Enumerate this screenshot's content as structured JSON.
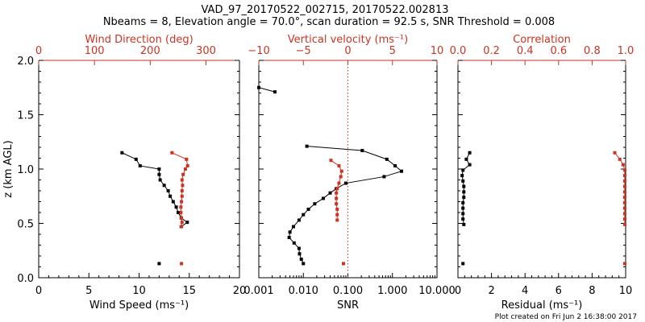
{
  "title_line1": "VAD_97_20170522_002715, 20170522.002813",
  "title_line2": "Nbeams = 8, Elevation angle = 70.0°, scan duration = 92.5 s, SNR Threshold = 0.008",
  "footer": "Plot created on Fri Jun  2 16:38:00 2017",
  "colors": {
    "black": "#000000",
    "red": "#cc3322"
  },
  "chart_data": [
    {
      "type": "scatter",
      "xlabel_bottom": "Wind Speed (ms⁻¹)",
      "xlabel_top": "Wind Direction (deg)",
      "ylabel": "z (km AGL)",
      "xlim_bottom": [
        0,
        20
      ],
      "xticks_bottom": [
        "0",
        "5",
        "10",
        "15",
        "20"
      ],
      "xlim_top": [
        0,
        360
      ],
      "xticks_top": [
        "0",
        "100",
        "200",
        "300"
      ],
      "ylim": [
        0,
        2
      ],
      "yticks": [
        "0.0",
        "0.5",
        "1.0",
        "1.5",
        "2.0"
      ],
      "series": [
        {
          "color": "#000000",
          "axis": "bottom",
          "line": true,
          "points": [
            [
              8.3,
              1.15
            ],
            [
              9.7,
              1.09
            ],
            [
              10.1,
              1.03
            ],
            [
              12.0,
              1.0
            ],
            [
              12.0,
              0.95
            ],
            [
              12.1,
              0.9
            ],
            [
              12.5,
              0.85
            ],
            [
              12.9,
              0.8
            ],
            [
              13.1,
              0.75
            ],
            [
              13.4,
              0.7
            ],
            [
              13.7,
              0.65
            ],
            [
              13.9,
              0.6
            ],
            [
              14.2,
              0.55
            ],
            [
              14.8,
              0.51
            ],
            [
              14.2,
              0.47
            ]
          ]
        },
        {
          "color": "#000000",
          "axis": "bottom",
          "line": false,
          "points": [
            [
              12.0,
              0.13
            ]
          ]
        },
        {
          "color": "#cc3322",
          "axis": "top",
          "line": true,
          "points": [
            [
              239,
              1.15
            ],
            [
              265,
              1.09
            ],
            [
              267,
              1.03
            ],
            [
              263,
              1.0
            ],
            [
              259,
              0.95
            ],
            [
              257,
              0.9
            ],
            [
              258,
              0.85
            ],
            [
              257,
              0.8
            ],
            [
              257,
              0.75
            ],
            [
              256,
              0.7
            ],
            [
              255,
              0.65
            ],
            [
              255,
              0.6
            ],
            [
              256,
              0.55
            ],
            [
              257,
              0.51
            ],
            [
              256,
              0.47
            ]
          ]
        },
        {
          "color": "#cc3322",
          "axis": "top",
          "line": false,
          "points": [
            [
              256,
              0.13
            ]
          ]
        }
      ]
    },
    {
      "type": "scatter",
      "xlabel_bottom": "SNR",
      "xlabel_top": "Vertical velocity (ms⁻¹)",
      "xscale_bottom": "log",
      "xlim_bottom": [
        0.001,
        10
      ],
      "xticks_bottom": [
        "0.001",
        "0.010",
        "0.100",
        "1.000",
        "10.000"
      ],
      "xlim_top": [
        -10,
        10
      ],
      "xticks_top": [
        "−10",
        "−5",
        "0",
        "5",
        "10"
      ],
      "ylim": [
        0,
        2
      ],
      "vline_top_value": 0,
      "series": [
        {
          "color": "#000000",
          "axis": "bottom",
          "line": true,
          "points": [
            [
              0.0023,
              1.71
            ],
            [
              0.001,
              1.75
            ]
          ]
        },
        {
          "color": "#000000",
          "axis": "bottom",
          "line": true,
          "points": [
            [
              0.012,
              1.21
            ],
            [
              0.21,
              1.17
            ],
            [
              0.75,
              1.09
            ],
            [
              1.15,
              1.03
            ],
            [
              1.6,
              0.98
            ],
            [
              0.65,
              0.93
            ],
            [
              0.09,
              0.87
            ],
            [
              0.055,
              0.82
            ],
            [
              0.04,
              0.78
            ],
            [
              0.028,
              0.73
            ],
            [
              0.018,
              0.68
            ],
            [
              0.013,
              0.63
            ],
            [
              0.01,
              0.58
            ],
            [
              0.008,
              0.53
            ],
            [
              0.006,
              0.47
            ],
            [
              0.005,
              0.42
            ],
            [
              0.0048,
              0.37
            ],
            [
              0.0062,
              0.32
            ],
            [
              0.008,
              0.27
            ],
            [
              0.0082,
              0.22
            ],
            [
              0.009,
              0.17
            ],
            [
              0.01,
              0.13
            ]
          ]
        },
        {
          "color": "#cc3322",
          "axis": "top",
          "line": true,
          "points": [
            [
              -1.9,
              1.08
            ],
            [
              -1.0,
              1.03
            ],
            [
              -0.7,
              0.98
            ],
            [
              -0.8,
              0.93
            ],
            [
              -1.0,
              0.87
            ],
            [
              -1.2,
              0.82
            ],
            [
              -1.3,
              0.78
            ],
            [
              -1.3,
              0.73
            ],
            [
              -1.3,
              0.68
            ],
            [
              -1.2,
              0.63
            ],
            [
              -1.2,
              0.58
            ],
            [
              -1.2,
              0.53
            ]
          ]
        },
        {
          "color": "#cc3322",
          "axis": "top",
          "line": false,
          "points": [
            [
              -0.5,
              0.13
            ]
          ]
        }
      ]
    },
    {
      "type": "scatter",
      "xlabel_bottom": "Residual (ms⁻¹)",
      "xlabel_top": "Correlation",
      "xlim_bottom": [
        0,
        10
      ],
      "xticks_bottom": [
        "0",
        "2",
        "4",
        "6",
        "8",
        "10"
      ],
      "xlim_top": [
        0,
        1
      ],
      "xticks_top": [
        "0.0",
        "0.2",
        "0.4",
        "0.6",
        "0.8",
        "1.0"
      ],
      "ylim": [
        0,
        2
      ],
      "series": [
        {
          "color": "#000000",
          "axis": "bottom",
          "line": true,
          "points": [
            [
              0.7,
              1.15
            ],
            [
              0.5,
              1.09
            ],
            [
              0.7,
              1.04
            ],
            [
              0.3,
              0.99
            ],
            [
              0.25,
              0.94
            ],
            [
              0.3,
              0.89
            ],
            [
              0.35,
              0.84
            ],
            [
              0.35,
              0.79
            ],
            [
              0.35,
              0.74
            ],
            [
              0.3,
              0.69
            ],
            [
              0.3,
              0.64
            ],
            [
              0.3,
              0.59
            ],
            [
              0.3,
              0.54
            ],
            [
              0.35,
              0.49
            ]
          ]
        },
        {
          "color": "#000000",
          "axis": "bottom",
          "line": false,
          "points": [
            [
              0.3,
              0.13
            ]
          ]
        },
        {
          "color": "#cc3322",
          "axis": "top",
          "line": true,
          "points": [
            [
              0.935,
              1.15
            ],
            [
              0.965,
              1.09
            ],
            [
              0.985,
              1.04
            ],
            [
              0.995,
              0.99
            ],
            [
              0.995,
              0.94
            ],
            [
              0.995,
              0.89
            ],
            [
              0.995,
              0.84
            ],
            [
              0.995,
              0.79
            ],
            [
              0.995,
              0.74
            ],
            [
              0.995,
              0.69
            ],
            [
              0.995,
              0.64
            ],
            [
              0.995,
              0.59
            ],
            [
              0.995,
              0.54
            ],
            [
              0.995,
              0.49
            ]
          ]
        },
        {
          "color": "#cc3322",
          "axis": "top",
          "line": false,
          "points": [
            [
              0.995,
              0.13
            ]
          ]
        }
      ]
    }
  ]
}
